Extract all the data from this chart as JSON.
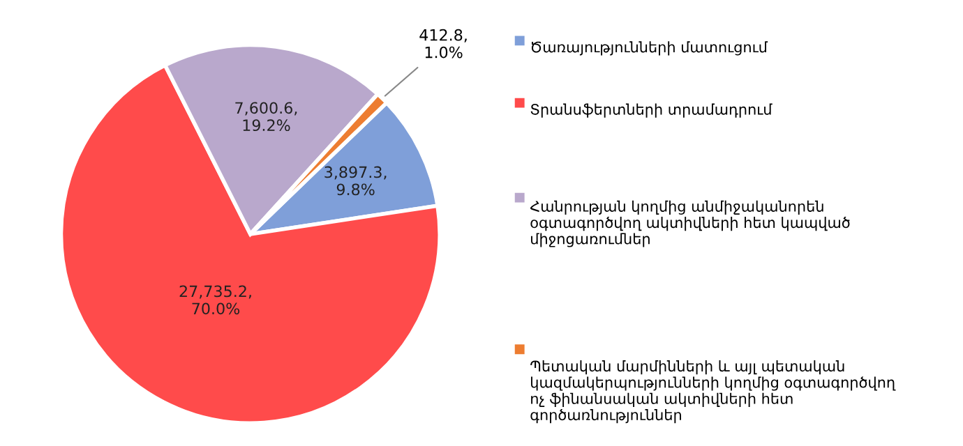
{
  "chart_data": {
    "type": "pie",
    "categories": [
      "Ծառայությունների մատուցում",
      "Տրանսֆերտների տրամադրում",
      "Հանրության կողմից անմիջականորեն օգտագործվող ակտիվների հետ կապված միջոցառումներ",
      "Պետական մարմինների և այլ պետական կազմակերպությունների կողմից օգտագործվող ոչ ֆինանսական ակտիվների հետ գործառնություններ"
    ],
    "values": [
      3897.3,
      27735.2,
      7600.6,
      412.8
    ],
    "colors": [
      "#7f9fd9",
      "#ff4b4b",
      "#b9a8cc",
      "#ed7d31"
    ],
    "value_labels": [
      "3,897.3,\n9.8%",
      "27,735.2,\n70.0%",
      "7,600.6,\n19.2%",
      "412.8,\n1.0%"
    ],
    "legend": "right"
  }
}
